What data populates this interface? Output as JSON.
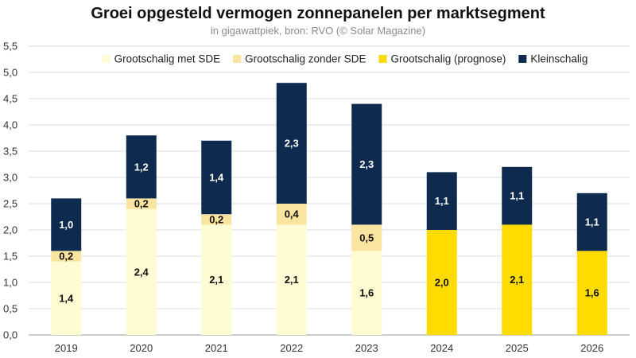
{
  "chart_data": {
    "type": "bar",
    "stacked": true,
    "title": "Groei opgesteld vermogen zonnepanelen per marktsegment",
    "subtitle": "in gigawattpiek, bron: RVO (© Solar Magazine)",
    "xlabel": "",
    "ylabel": "",
    "ylim": [
      0,
      5.5
    ],
    "ytick_step": 0.5,
    "grid": true,
    "legend_position": "top",
    "categories": [
      "2019",
      "2020",
      "2021",
      "2022",
      "2023",
      "2024",
      "2025",
      "2026"
    ],
    "series": [
      {
        "name": "Grootschalig met SDE",
        "color": "#FFFBD2",
        "label_color": "#111111",
        "values": [
          1.4,
          2.4,
          2.1,
          2.1,
          1.6,
          null,
          null,
          null
        ]
      },
      {
        "name": "Grootschalig zonder SDE",
        "color": "#F9E4A0",
        "label_color": "#111111",
        "values": [
          0.2,
          0.2,
          0.2,
          0.4,
          0.5,
          null,
          null,
          null
        ]
      },
      {
        "name": "Grootschalig (prognose)",
        "color": "#FFDB00",
        "label_color": "#111111",
        "values": [
          null,
          null,
          null,
          null,
          null,
          2.0,
          2.1,
          1.6
        ]
      },
      {
        "name": "Kleinschalig",
        "color": "#0E2A4E",
        "label_color": "#ffffff",
        "values": [
          1.0,
          1.2,
          1.4,
          2.3,
          2.3,
          1.1,
          1.1,
          1.1
        ]
      }
    ],
    "y_tick_labels": [
      "0,0",
      "0,5",
      "1,0",
      "1,5",
      "2,0",
      "2,5",
      "3,0",
      "3,5",
      "4,0",
      "4,5",
      "5,0",
      "5,5"
    ],
    "data_labels": [
      [
        "1,4",
        "2,4",
        "2,1",
        "2,1",
        "1,6",
        null,
        null,
        null
      ],
      [
        "0,2",
        "0,2",
        "0,2",
        "0,4",
        "0,5",
        null,
        null,
        null
      ],
      [
        null,
        null,
        null,
        null,
        null,
        "2,0",
        "2,1",
        "1,6"
      ],
      [
        "1,0",
        "1,2",
        "1,4",
        "2,3",
        "2,3",
        "1,1",
        "1,1",
        "1,1"
      ]
    ]
  }
}
